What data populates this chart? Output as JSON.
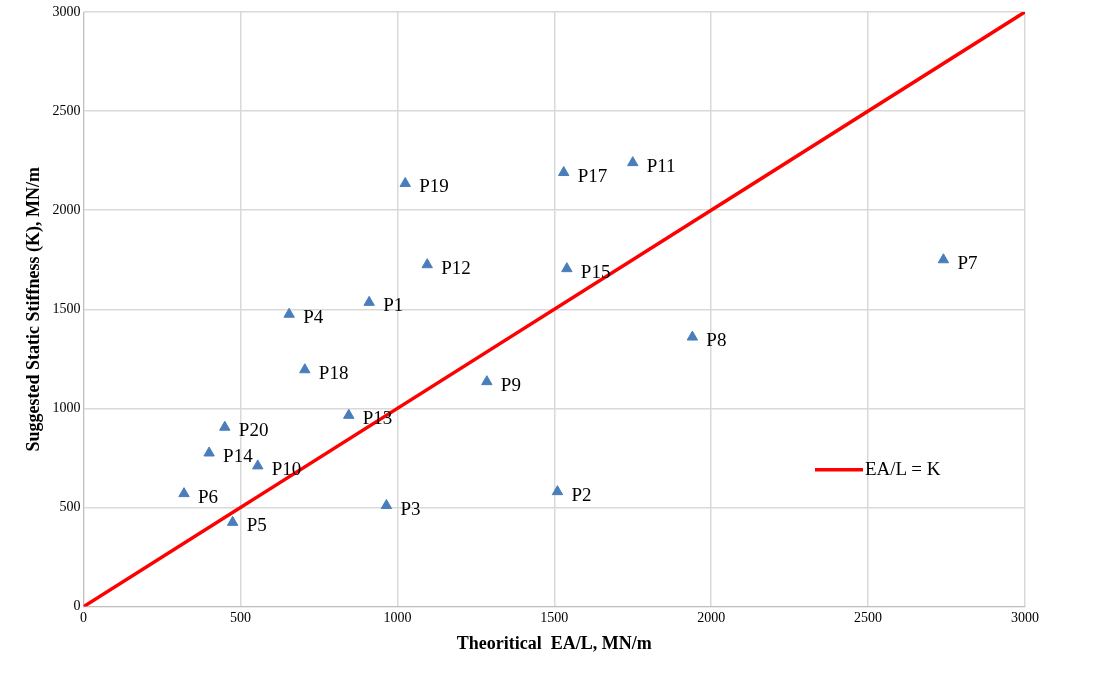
{
  "chart_data": {
    "type": "scatter",
    "xlabel": "Theoritical  EA/L, MN/m",
    "ylabel": "Suggested Static Stiffness (K), MN/m",
    "xlim": [
      0,
      3000
    ],
    "xticks": [
      0,
      500,
      1000,
      1500,
      2000,
      2500,
      3000
    ],
    "ylim": [
      0,
      3000
    ],
    "yticks": [
      0,
      500,
      1000,
      1500,
      2000,
      2500,
      3000
    ],
    "grid": true,
    "legend": "right",
    "marker": "triangle",
    "series": [
      {
        "color": "#4a7ebb",
        "x": [
          910,
          1510,
          965,
          655,
          475,
          320,
          2740,
          1940,
          1285,
          555,
          1750,
          1095,
          845,
          400,
          1540,
          1530,
          705,
          1025,
          450
        ],
        "values": [
          1535,
          580,
          510,
          1475,
          425,
          570,
          1750,
          1360,
          1135,
          710,
          2240,
          1725,
          965,
          775,
          1705,
          2190,
          1195,
          2135,
          905
        ]
      },
      {
        "type": "line",
        "name": "EA/L = K",
        "color": "#ff0000",
        "x": [
          0,
          3000
        ],
        "values": [
          0,
          3000
        ],
        "marker": "none",
        "line_style": "solid"
      }
    ],
    "annotations": [
      {
        "text": "P1",
        "x": 910,
        "y": 1535
      },
      {
        "text": "P2",
        "x": 1510,
        "y": 580
      },
      {
        "text": "P3",
        "x": 965,
        "y": 510
      },
      {
        "text": "P4",
        "x": 655,
        "y": 1475
      },
      {
        "text": "P5",
        "x": 475,
        "y": 425
      },
      {
        "text": "P6",
        "x": 320,
        "y": 570
      },
      {
        "text": "P7",
        "x": 2740,
        "y": 1750
      },
      {
        "text": "P8",
        "x": 1940,
        "y": 1360
      },
      {
        "text": "P9",
        "x": 1285,
        "y": 1135
      },
      {
        "text": "P10",
        "x": 555,
        "y": 710
      },
      {
        "text": "P11",
        "x": 1750,
        "y": 2240
      },
      {
        "text": "P12",
        "x": 1095,
        "y": 1725
      },
      {
        "text": "P13",
        "x": 845,
        "y": 965
      },
      {
        "text": "P14",
        "x": 400,
        "y": 775
      },
      {
        "text": "P15",
        "x": 1540,
        "y": 1705
      },
      {
        "text": "P17",
        "x": 1530,
        "y": 2190
      },
      {
        "text": "P18",
        "x": 705,
        "y": 1195
      },
      {
        "text": "P19",
        "x": 1025,
        "y": 2135
      },
      {
        "text": "P20",
        "x": 450,
        "y": 905
      }
    ]
  }
}
